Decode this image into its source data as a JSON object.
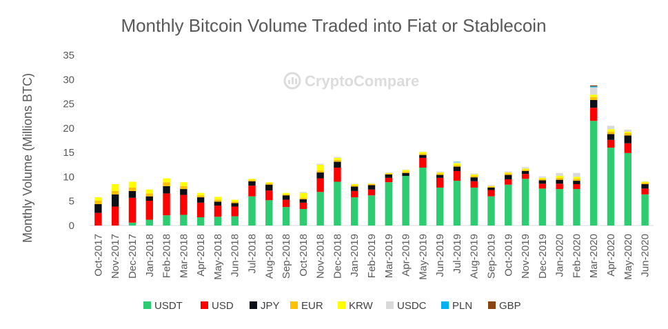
{
  "watermark": {
    "text": "CryptoCompare",
    "icon": "cryptocompare-logo-icon"
  },
  "chart_data": {
    "type": "bar",
    "stacked": true,
    "title": "Monthly Bitcoin Volume Traded into Fiat or Stablecoin",
    "xlabel": "",
    "ylabel": "Monthly Volume (Millions BTC)",
    "ylim": [
      0,
      35
    ],
    "yticks": [
      0,
      5,
      10,
      15,
      20,
      25,
      30,
      35
    ],
    "grid": false,
    "legend_position": "bottom",
    "categories": [
      "Oct-2017",
      "Nov-2017",
      "Dec-2017",
      "Jan-2018",
      "Feb-2018",
      "Mar-2018",
      "Apr-2018",
      "May-2018",
      "Jun-2018",
      "Jul-2018",
      "Aug-2018",
      "Sep-2018",
      "Oct-2018",
      "Nov-2018",
      "Dec-2018",
      "Jan-2019",
      "Feb-2019",
      "Mar-2019",
      "Apr-2019",
      "May-2019",
      "Jun-2019",
      "Jul-2019",
      "Aug-2019",
      "Sep-2019",
      "Oct-2019",
      "Nov-2019",
      "Dec-2019",
      "Jan-2020",
      "Feb-2020",
      "Mar-2020",
      "Apr-2020",
      "May-2020",
      "Jun-2020"
    ],
    "series": [
      {
        "name": "USDT",
        "color": "#2ecc71",
        "values": [
          0,
          0,
          0.6,
          1.2,
          2.1,
          2.2,
          1.7,
          1.8,
          1.9,
          6.0,
          5.2,
          3.8,
          3.4,
          6.9,
          9.0,
          5.8,
          6.2,
          8.9,
          10.2,
          11.9,
          7.8,
          9.2,
          7.8,
          6.0,
          8.4,
          9.6,
          7.6,
          7.5,
          7.5,
          21.5,
          16.0,
          14.9,
          6.4
        ]
      },
      {
        "name": "USD",
        "color": "#ff0000",
        "values": [
          2.6,
          3.9,
          5.1,
          3.9,
          4.5,
          4.1,
          3.0,
          2.3,
          2.0,
          2.2,
          2.0,
          1.5,
          1.3,
          2.8,
          2.9,
          1.3,
          1.2,
          0.9,
          0,
          2.0,
          2.0,
          2.0,
          1.3,
          1.3,
          1.1,
          1.0,
          1.0,
          1.1,
          1.0,
          2.7,
          1.6,
          2.0,
          1.2
        ]
      },
      {
        "name": "JPY",
        "color": "#0d1117",
        "values": [
          1.8,
          2.5,
          1.4,
          0.9,
          1.5,
          1.2,
          1.1,
          0.8,
          0.7,
          0.9,
          1.2,
          0.9,
          0.7,
          1.2,
          1.2,
          0.9,
          0.9,
          0.7,
          0.6,
          0.6,
          0.6,
          0.9,
          0.8,
          0.5,
          0.9,
          0.6,
          0.7,
          0.8,
          0.7,
          1.6,
          1.2,
          1.6,
          0.9
        ]
      },
      {
        "name": "EUR",
        "color": "#ffc000",
        "values": [
          0.7,
          0.7,
          0.7,
          0.6,
          0.8,
          0.6,
          0.4,
          0.4,
          0.3,
          0.3,
          0.3,
          0.2,
          0.3,
          0.4,
          0.4,
          0.3,
          0.2,
          0.2,
          0.3,
          0.3,
          0.3,
          0.3,
          0.3,
          0.2,
          0.3,
          0.3,
          0.3,
          0.4,
          0.4,
          0.6,
          0.5,
          0.5,
          0.3
        ]
      },
      {
        "name": "KRW",
        "color": "#ffff00",
        "values": [
          0.7,
          1.4,
          1.2,
          0.8,
          0.8,
          0.8,
          0.5,
          0.6,
          0.4,
          0.2,
          0.2,
          0.3,
          1.0,
          1.2,
          0.4,
          0.2,
          0.1,
          0.1,
          0.3,
          0.3,
          0.2,
          0.4,
          0.3,
          0.1,
          0.2,
          0.2,
          0.2,
          0.4,
          0.4,
          0.5,
          0.5,
          0.3,
          0.2
        ]
      },
      {
        "name": "USDC",
        "color": "#d9d9d9",
        "values": [
          0,
          0,
          0,
          0,
          0,
          0,
          0,
          0,
          0,
          0,
          0,
          0,
          0.2,
          0.2,
          0.2,
          0.1,
          0.1,
          0.1,
          0.1,
          0.1,
          0.2,
          0.2,
          0.2,
          0.2,
          0.2,
          0.3,
          0.3,
          0.6,
          0.8,
          1.5,
          0.7,
          0.4,
          0.1
        ]
      },
      {
        "name": "PLN",
        "color": "#00b0f0",
        "values": [
          0,
          0,
          0,
          0,
          0,
          0,
          0,
          0,
          0,
          0,
          0,
          0,
          0,
          0,
          0,
          0,
          0,
          0,
          0,
          0,
          0,
          0.1,
          0,
          0,
          0,
          0,
          0,
          0,
          0,
          0.2,
          0,
          0,
          0
        ]
      },
      {
        "name": "GBP",
        "color": "#8b4513",
        "values": [
          0,
          0,
          0,
          0,
          0,
          0,
          0,
          0,
          0,
          0,
          0,
          0,
          0,
          0,
          0,
          0,
          0,
          0,
          0,
          0,
          0,
          0,
          0,
          0,
          0,
          0,
          0,
          0,
          0,
          0.2,
          0,
          0,
          0
        ]
      }
    ]
  }
}
